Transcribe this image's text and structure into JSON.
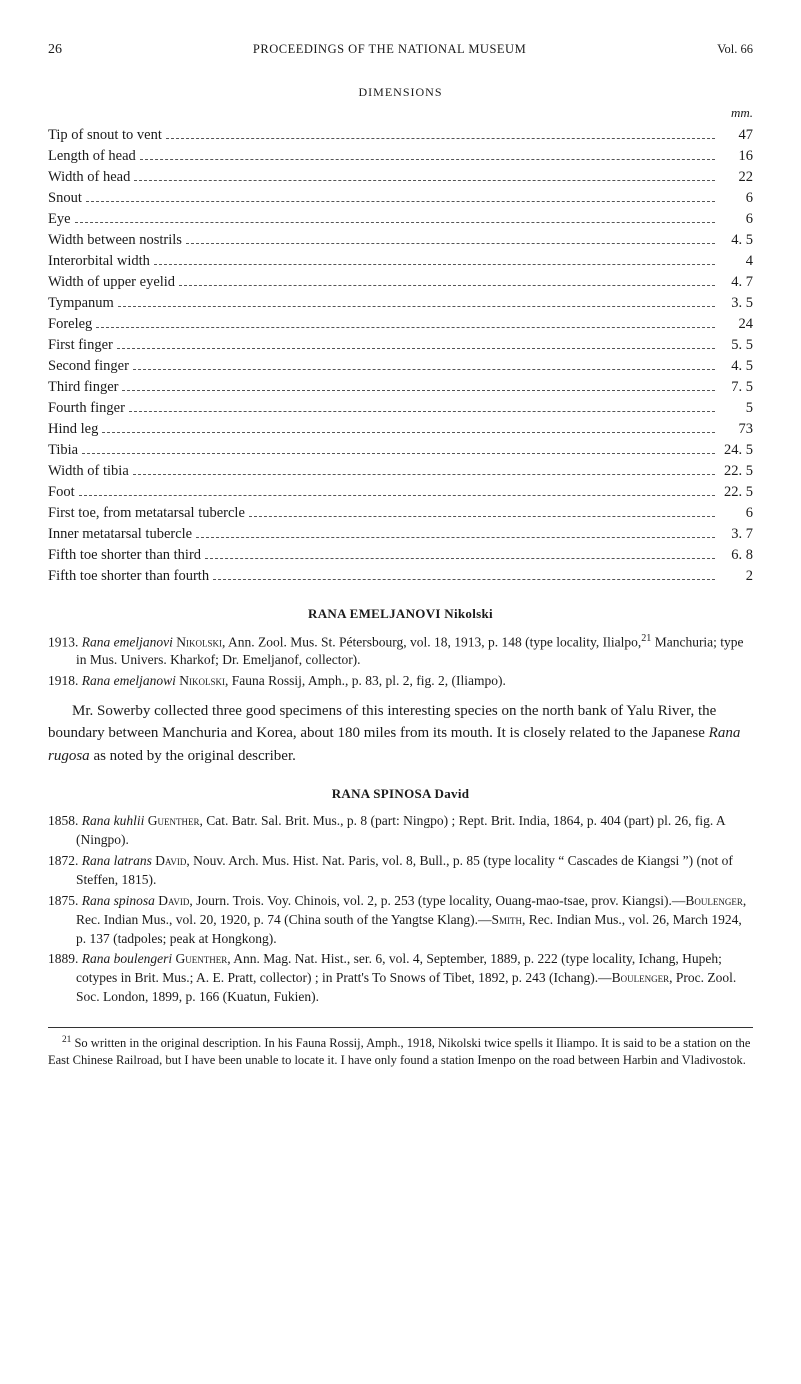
{
  "header": {
    "page_number": "26",
    "running_title": "PROCEEDINGS OF THE NATIONAL MUSEUM",
    "vol": "Vol. 66"
  },
  "dimensions": {
    "title": "DIMENSIONS",
    "unit_label": "mm.",
    "rows": [
      {
        "label": "Tip of snout to vent",
        "value": "47"
      },
      {
        "label": "Length of head",
        "value": "16"
      },
      {
        "label": "Width of head",
        "value": "22"
      },
      {
        "label": "Snout",
        "value": "6"
      },
      {
        "label": "Eye",
        "value": "6"
      },
      {
        "label": "Width between nostrils",
        "value": "4. 5"
      },
      {
        "label": "Interorbital width",
        "value": "4"
      },
      {
        "label": "Width of upper eyelid",
        "value": "4. 7"
      },
      {
        "label": "Tympanum",
        "value": "3. 5"
      },
      {
        "label": "Foreleg",
        "value": "24"
      },
      {
        "label": "First finger",
        "value": "5. 5"
      },
      {
        "label": "Second finger",
        "value": "4. 5"
      },
      {
        "label": "Third finger",
        "value": "7. 5"
      },
      {
        "label": "Fourth finger",
        "value": "5"
      },
      {
        "label": "Hind leg",
        "value": "73"
      },
      {
        "label": "Tibia",
        "value": "24. 5"
      },
      {
        "label": "Width of tibia",
        "value": "22. 5"
      },
      {
        "label": "Foot",
        "value": "22. 5"
      },
      {
        "label": "First toe, from metatarsal tubercle",
        "value": "6"
      },
      {
        "label": "Inner metatarsal tubercle",
        "value": "3. 7"
      },
      {
        "label": "Fifth toe shorter than third",
        "value": "6. 8"
      },
      {
        "label": "Fifth toe shorter than fourth",
        "value": "2"
      }
    ]
  },
  "emeljanovi": {
    "heading": "RANA EMELJANOVI Nikolski",
    "refs": [
      "1913. <em>Rana emeljanovi</em> <span class=\"sc\">Nikolski</span>, Ann. Zool. Mus. St. Pétersbourg, vol. 18, 1913, p. 148 (type locality, Ilialpo,<sup>21</sup> Manchuria; type in Mus. Univers. Kharkof; Dr. Emeljanof, collector).",
      "1918. <em>Rana emeljanowi</em> <span class=\"sc\">Nikolski</span>, Fauna Rossij, Amph., p. 83, pl. 2, fig. 2, (Iliampo)."
    ],
    "body": "Mr. Sowerby collected three good specimens of this interesting species on the north bank of Yalu River, the boundary between Manchuria and Korea, about 180 miles from its mouth. It is closely related to the Japanese <em>Rana rugosa</em> as noted by the original describer."
  },
  "spinosa": {
    "heading": "RANA SPINOSA David",
    "refs": [
      "1858. <em>Rana kuhlii</em> <span class=\"sc\">Guenther</span>, Cat. Batr. Sal. Brit. Mus., p. 8 (part: Ningpo) ; Rept. Brit. India, 1864, p. 404 (part) pl. 26, fig. A (Ningpo).",
      "1872. <em>Rana latrans</em> <span class=\"sc\">David</span>, Nouv. Arch. Mus. Hist. Nat. Paris, vol. 8, Bull., p. 85 (type locality “ Cascades de Kiangsi ”) (not of Steffen, 1815).",
      "1875. <em>Rana spinosa</em> <span class=\"sc\">David</span>, Journ. Trois. Voy. Chinois, vol. 2, p. 253 (type locality, Ouang-mao-tsae, prov. Kiangsi).—<span class=\"sc\">Boulenger</span>, Rec. Indian Mus., vol. 20, 1920, p. 74 (China south of the Yangtse Klang).—<span class=\"sc\">Smith</span>, Rec. Indian Mus., vol. 26, March 1924, p. 137 (tadpoles; peak at Hongkong).",
      "1889. <em>Rana boulengeri</em> <span class=\"sc\">Guenther</span>, Ann. Mag. Nat. Hist., ser. 6, vol. 4, September, 1889, p. 222 (type locality, Ichang, Hupeh; cotypes in Brit. Mus.; A. E. Pratt, collector) ; in Pratt's To Snows of Tibet, 1892, p. 243 (Ichang).—<span class=\"sc\">Boulenger</span>, Proc. Zool. Soc. London, 1899, p. 166 (Kuatun, Fukien)."
    ]
  },
  "footnote": {
    "marker": "21",
    "text": "So written in the original description. In his Fauna Rossij, Amph., 1918, Nikolski twice spells it Iliampo. It is said to be a station on the East Chinese Railroad, but I have been unable to locate it. I have only found a station Imenpo on the road between Harbin and Vladivostok."
  }
}
